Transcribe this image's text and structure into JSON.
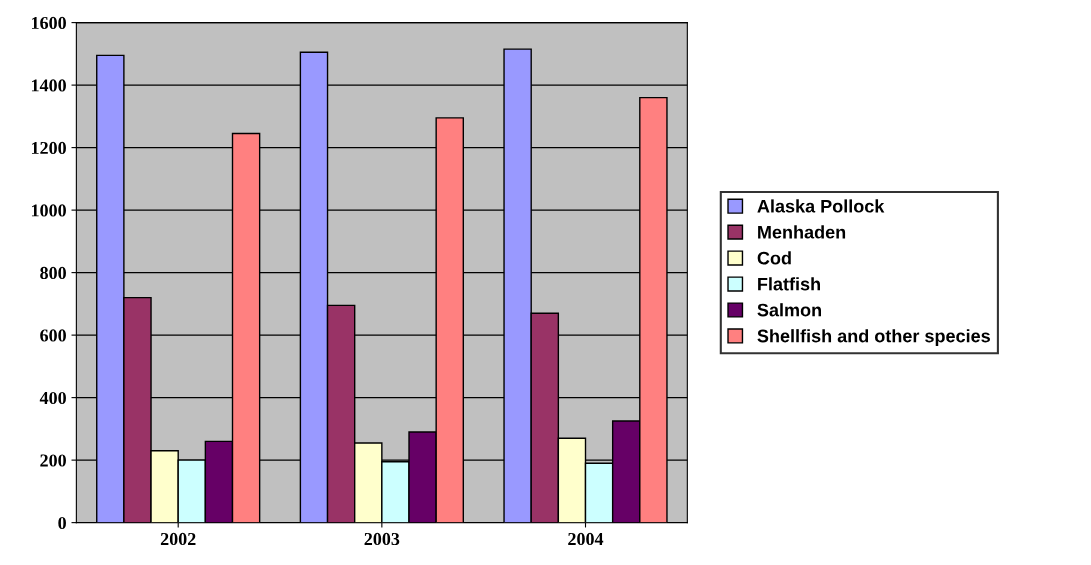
{
  "chart_data": {
    "type": "bar",
    "categories": [
      "2002",
      "2003",
      "2004"
    ],
    "series": [
      {
        "name": "Alaska Pollock",
        "color": "#9999ff",
        "values": [
          1495,
          1505,
          1515
        ]
      },
      {
        "name": "Menhaden",
        "color": "#993366",
        "values": [
          720,
          695,
          670
        ]
      },
      {
        "name": "Cod",
        "color": "#ffffcc",
        "values": [
          230,
          255,
          270
        ]
      },
      {
        "name": "Flatfish",
        "color": "#ccffff",
        "values": [
          200,
          195,
          190
        ]
      },
      {
        "name": "Salmon",
        "color": "#660066",
        "values": [
          260,
          290,
          325
        ]
      },
      {
        "name": "Shellfish and other species",
        "color": "#ff8080",
        "values": [
          1245,
          1295,
          1360
        ]
      }
    ],
    "ylim": [
      0,
      1600
    ],
    "yticks": [
      0,
      200,
      400,
      600,
      800,
      1000,
      1200,
      1400,
      1600
    ],
    "grid": "y",
    "legend": "right"
  }
}
